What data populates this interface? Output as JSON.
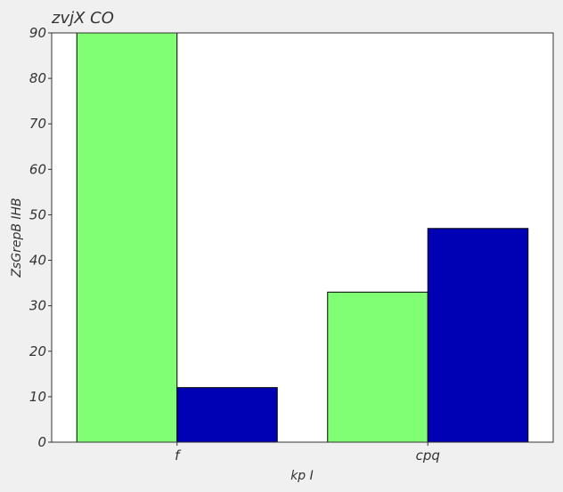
{
  "chart_data": {
    "type": "bar",
    "title": "zvjX CO",
    "xlabel": "kp I",
    "ylabel": "ZsGrepB IHB",
    "categories": [
      "f",
      "cpq"
    ],
    "series": [
      {
        "values": [
          90,
          33
        ],
        "color": "#80ff75"
      },
      {
        "values": [
          12,
          47
        ],
        "color": "#0000b4"
      }
    ],
    "ylim": [
      0,
      90
    ],
    "yticks": [
      0,
      10,
      20,
      30,
      40,
      50,
      60,
      70,
      80,
      90
    ],
    "grid": false,
    "legend": "none"
  },
  "colors": {
    "background": "#f0f0f0",
    "plot_background": "#ffffff",
    "axis": "#333333"
  }
}
